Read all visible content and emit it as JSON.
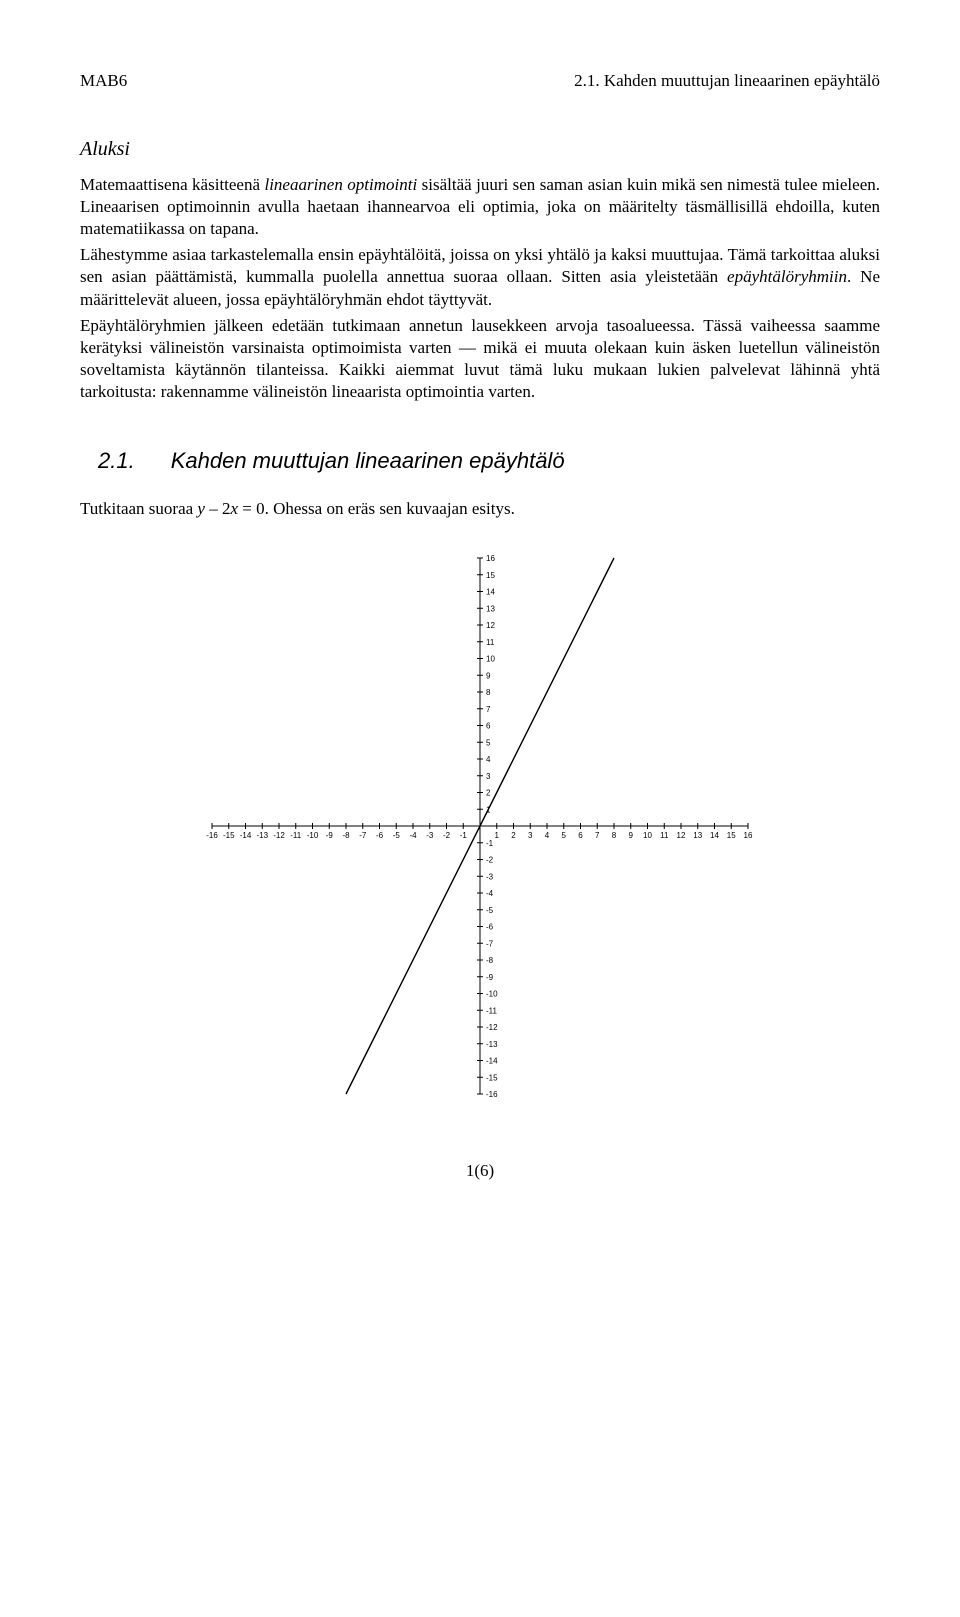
{
  "header": {
    "left": "MAB6",
    "right": "2.1. Kahden muuttujan lineaarinen epäyhtälö"
  },
  "aluksi": "Aluksi",
  "para1_a": "Matemaattisena käsitteenä ",
  "para1_em1": "lineaarinen optimointi",
  "para1_b": " sisältää juuri sen saman asian kuin mikä sen nimestä tulee mieleen. Lineaarisen optimoinnin avulla haetaan ihannearvoa eli optimia, joka on määritelty täsmällisillä ehdoilla, kuten matematiikassa on tapana.",
  "para2_a": "Lähestymme asiaa tarkastelemalla ensin epäyhtälöitä, joissa on yksi yhtälö ja kaksi muuttujaa. Tämä tarkoittaa aluksi sen asian päättämistä, kummalla puolella annettua suoraa ollaan. Sitten asia yleistetään ",
  "para2_em1": "epäyhtälöryhmiin",
  "para2_b": ". Ne määrittelevät alueen, jossa epäyhtälöryhmän ehdot täyttyvät.",
  "para3": "Epäyhtälöryhmien jälkeen edetään tutkimaan annetun lausekkeen arvoja tasoalueessa. Tässä vaiheessa saamme kerätyksi välineistön varsinaista optimoimista varten ― mikä ei muuta olekaan kuin äsken luetellun välineistön soveltamista käytännön tilanteissa. Kaikki aiemmat luvut tämä luku mukaan lukien palvelevat lähinnä yhtä tarkoitusta: rakennamme välineistön lineaarista optimointia varten.",
  "section": {
    "num": "2.1.",
    "title": "Kahden muuttujan lineaarinen epäyhtälö"
  },
  "investigate_a": "Tutkitaan suoraa ",
  "investigate_em1": "y",
  "investigate_b": " – 2",
  "investigate_em2": "x",
  "investigate_c": " = 0. Ohessa on eräs sen kuvaajan esitys.",
  "footer": "1(6)",
  "chart": {
    "type": "line",
    "xlim": [
      -16,
      16
    ],
    "ylim": [
      -16,
      16
    ],
    "tick_step": 1,
    "axis_color": "#000000",
    "line_color": "#000000",
    "tick_color": "#000000",
    "background": "#ffffff",
    "line": {
      "slope": 2,
      "intercept": 0
    },
    "svg_size": 560,
    "tick_font_size": 8,
    "line_width": 1.4,
    "axis_width": 1,
    "tick_len": 3
  }
}
